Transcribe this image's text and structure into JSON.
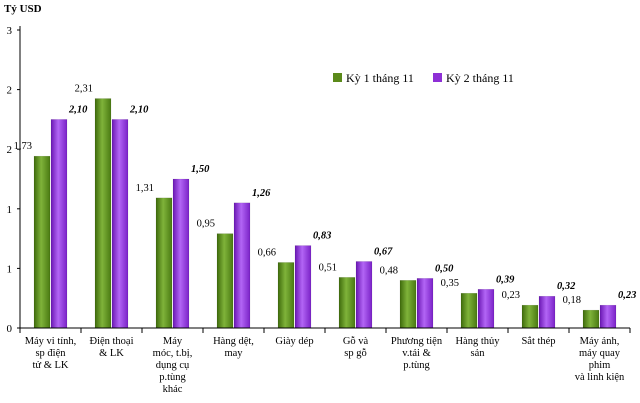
{
  "chart_data": {
    "type": "bar",
    "title": "",
    "ylabel": "Tỷ USD",
    "xlabel": "",
    "ylim": [
      0,
      3
    ],
    "yticks": [
      "0",
      "1",
      "1",
      "2",
      "2",
      "3"
    ],
    "grid": false,
    "legend_position": "upper-right",
    "categories": [
      [
        "Máy vi tính,",
        "sp điện",
        "tử & LK"
      ],
      [
        "Điện thoại",
        "& LK"
      ],
      [
        "Máy",
        "móc, t.bị,",
        "dụng cụ",
        "p.tùng",
        "khác"
      ],
      [
        "Hàng dệt,",
        "may"
      ],
      [
        "Giày dép"
      ],
      [
        "Gỗ và",
        "sp gỗ"
      ],
      [
        "Phương tiện",
        "v.tải &",
        "p.tùng"
      ],
      [
        "Hàng thủy",
        "sản"
      ],
      [
        "Sắt thép"
      ],
      [
        "Máy ảnh,",
        "máy quay",
        "phim",
        "và linh kiện"
      ]
    ],
    "series": [
      {
        "name": "Kỳ 1 tháng 11",
        "color": "#5b8a1a",
        "values": [
          1.73,
          2.31,
          1.31,
          0.95,
          0.66,
          0.51,
          0.48,
          0.35,
          0.23,
          0.18
        ],
        "labels": [
          "1,73",
          "2,31",
          "1,31",
          "0,95",
          "0,66",
          "0,51",
          "0,48",
          "0,35",
          "0,23",
          "0,18"
        ]
      },
      {
        "name": "Kỳ 2 tháng 11",
        "color": "#8e2fd6",
        "values": [
          2.1,
          2.1,
          1.5,
          1.26,
          0.83,
          0.67,
          0.5,
          0.39,
          0.32,
          0.23
        ],
        "labels": [
          "2,10",
          "2,10",
          "1,50",
          "1,26",
          "0,83",
          "0,67",
          "0,50",
          "0,39",
          "0,32",
          "0,23"
        ]
      }
    ]
  }
}
